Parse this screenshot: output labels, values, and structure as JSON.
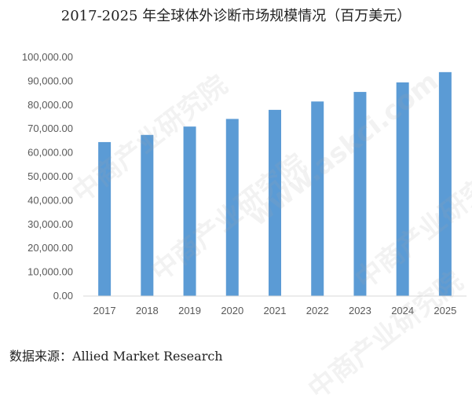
{
  "title": "2017-2025 年全球体外诊断市场规模情况（百万美元）",
  "source": "数据来源：Allied Market Research",
  "watermark": {
    "brand": "中商产业研究院",
    "url": "www.askci.com"
  },
  "colors": {
    "bar": "#5b9bd5",
    "axis": "#d9d9d9",
    "text": "#595959"
  },
  "chart_data": {
    "type": "bar",
    "categories": [
      "2017",
      "2018",
      "2019",
      "2020",
      "2021",
      "2022",
      "2023",
      "2024",
      "2025"
    ],
    "values": [
      64500,
      67500,
      71000,
      74200,
      78000,
      81500,
      85500,
      89500,
      93800
    ],
    "ylim": [
      0,
      100000
    ],
    "yticks": [
      "0.00",
      "10,000.00",
      "20,000.00",
      "30,000.00",
      "40,000.00",
      "50,000.00",
      "60,000.00",
      "70,000.00",
      "80,000.00",
      "90,000.00",
      "100,000.00"
    ],
    "grid": false,
    "legend": "none"
  }
}
